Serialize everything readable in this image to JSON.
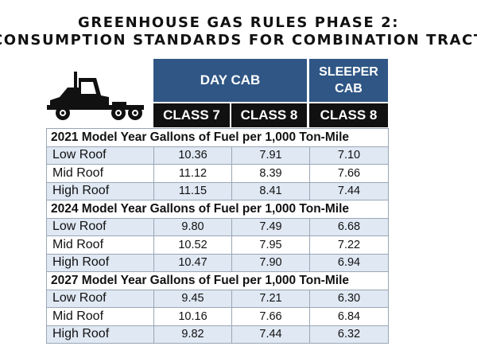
{
  "title": {
    "line1": "GREENHOUSE GAS RULES PHASE 2:",
    "line2": "CONSUMPTION STANDARDS FOR COMBINATION TRACTORS"
  },
  "icons": {
    "truck": "semi-truck-icon"
  },
  "colors": {
    "header_blue": "#2f5685",
    "header_black": "#111111",
    "row_light": "#dfe8f3"
  },
  "headers": {
    "day_cab": "DAY CAB",
    "sleeper_cab": "SLEEPER\nCAB",
    "columns": [
      "CLASS 7",
      "CLASS 8",
      "CLASS 8"
    ]
  },
  "sections": [
    {
      "title": "2021 Model Year Gallons of Fuel per 1,000 Ton-Mile",
      "rows": [
        {
          "label": "Low Roof",
          "values": [
            "10.36",
            "7.91",
            "7.10"
          ]
        },
        {
          "label": "Mid Roof",
          "values": [
            "11.12",
            "8.39",
            "7.66"
          ]
        },
        {
          "label": "High Roof",
          "values": [
            "11.15",
            "8.41",
            "7.44"
          ]
        }
      ]
    },
    {
      "title": "2024 Model Year Gallons of Fuel per 1,000 Ton-Mile",
      "rows": [
        {
          "label": "Low Roof",
          "values": [
            "9.80",
            "7.49",
            "6.68"
          ]
        },
        {
          "label": "Mid Roof",
          "values": [
            "10.52",
            "7.95",
            "7.22"
          ]
        },
        {
          "label": "High Roof",
          "values": [
            "10.47",
            "7.90",
            "6.94"
          ]
        }
      ]
    },
    {
      "title": "2027 Model Year Gallons of Fuel per 1,000 Ton-Mile",
      "rows": [
        {
          "label": "Low Roof",
          "values": [
            "9.45",
            "7.21",
            "6.30"
          ]
        },
        {
          "label": "Mid Roof",
          "values": [
            "10.16",
            "7.66",
            "6.84"
          ]
        },
        {
          "label": "High Roof",
          "values": [
            "9.82",
            "7.44",
            "6.32"
          ]
        }
      ]
    }
  ]
}
